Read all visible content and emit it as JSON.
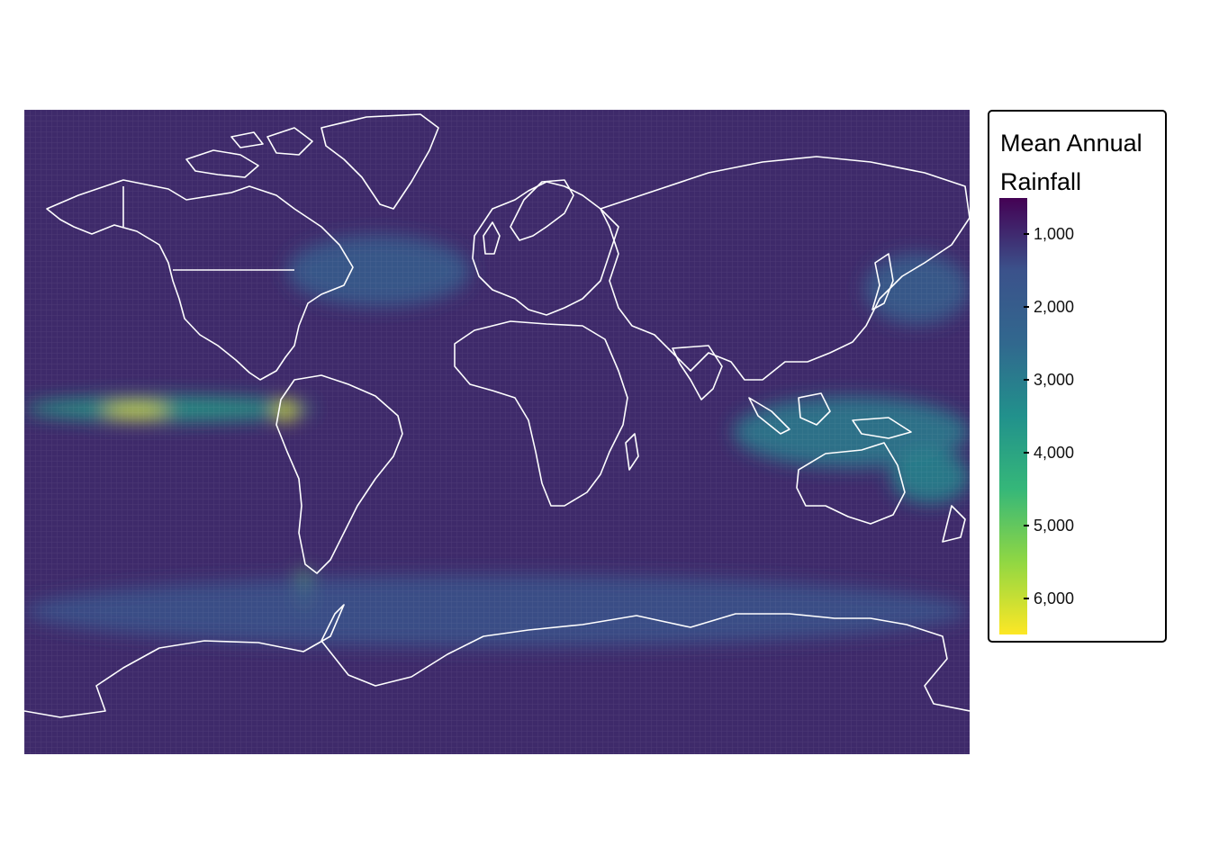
{
  "legend": {
    "title_line1": "Mean Annual",
    "title_line2": "Rainfall",
    "colors": {
      "low": "#440154",
      "mid1": "#31688e",
      "mid2": "#21918c",
      "mid3": "#35b779",
      "high": "#fde725"
    },
    "range": [
      500,
      6500
    ],
    "ticks": [
      {
        "value": 1000,
        "label": "1,000"
      },
      {
        "value": 2000,
        "label": "2,000"
      },
      {
        "value": 3000,
        "label": "3,000"
      },
      {
        "value": 4000,
        "label": "4,000"
      },
      {
        "value": 5000,
        "label": "5,000"
      },
      {
        "value": 6000,
        "label": "6,000"
      }
    ]
  },
  "map": {
    "background_color": "#3e2a6a",
    "border_color": "#ffffff",
    "rainfall_bands": [
      {
        "name": "itcz-pacific",
        "lon": [
          -180,
          -70
        ],
        "lat": [
          3,
          10
        ],
        "value": 3800
      },
      {
        "name": "itcz-peak",
        "lon": [
          -150,
          -125
        ],
        "lat": [
          4,
          8
        ],
        "value": 6300
      },
      {
        "name": "panama-peak",
        "lon": [
          -85,
          -76
        ],
        "lat": [
          3,
          9
        ],
        "value": 6200
      },
      {
        "name": "maritime-continent",
        "lon": [
          90,
          180
        ],
        "lat": [
          -10,
          10
        ],
        "value": 3000
      },
      {
        "name": "south-pacific-convergence",
        "lon": [
          150,
          180
        ],
        "lat": [
          -20,
          -5
        ],
        "value": 3200
      },
      {
        "name": "chile-coast",
        "lon": [
          -76,
          -71
        ],
        "lat": [
          -50,
          -38
        ],
        "value": 5000
      },
      {
        "name": "southern-storm-track",
        "lon": [
          -180,
          180
        ],
        "lat": [
          -60,
          -40
        ],
        "value": 1600
      },
      {
        "name": "north-pacific-storm-track",
        "lon": [
          140,
          180
        ],
        "lat": [
          30,
          50
        ],
        "value": 2100
      },
      {
        "name": "north-atlantic-storm-track",
        "lon": [
          -80,
          -10
        ],
        "lat": [
          35,
          55
        ],
        "value": 2000
      }
    ]
  }
}
